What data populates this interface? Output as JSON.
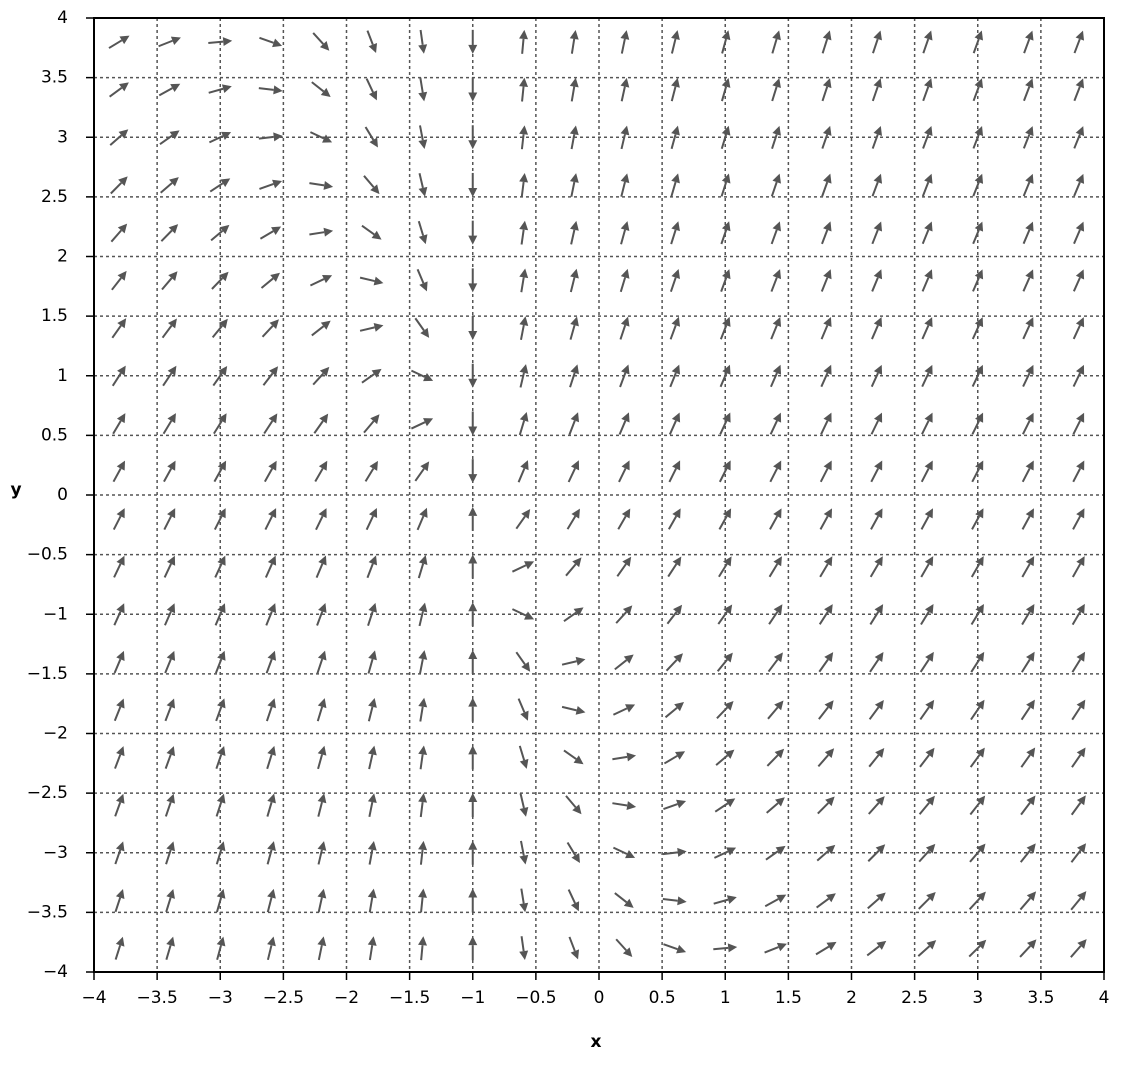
{
  "chart_data": {
    "type": "quiver",
    "xlabel": "x",
    "ylabel": "y",
    "xlim": [
      -4,
      4
    ],
    "ylim": [
      -4,
      4
    ],
    "xticks": [
      {
        "value": -4,
        "label": "−4"
      },
      {
        "value": -3.5,
        "label": "−3.5"
      },
      {
        "value": -3,
        "label": "−3"
      },
      {
        "value": -2.5,
        "label": "−2.5"
      },
      {
        "value": -2,
        "label": "−2"
      },
      {
        "value": -1.5,
        "label": "−1.5"
      },
      {
        "value": -1,
        "label": "−1"
      },
      {
        "value": -0.5,
        "label": "−0.5"
      },
      0,
      0.5,
      1,
      1.5,
      2,
      2.5,
      3,
      3.5,
      4
    ],
    "yticks": [
      {
        "value": -4,
        "label": "−4"
      },
      {
        "value": -3.5,
        "label": "−3.5"
      },
      {
        "value": -3,
        "label": "−3"
      },
      {
        "value": -2.5,
        "label": "−2.5"
      },
      {
        "value": -2,
        "label": "−2"
      },
      {
        "value": -1.5,
        "label": "−1.5"
      },
      {
        "value": -1,
        "label": "−1"
      },
      {
        "value": -0.5,
        "label": "−0.5"
      },
      0,
      0.5,
      1,
      1.5,
      2,
      2.5,
      3,
      3.5,
      4
    ],
    "grid": true,
    "color": "#555555",
    "x": [
      -3.8,
      -3.4,
      -3.0,
      -2.6,
      -2.2,
      -1.8,
      -1.4,
      -1.0,
      -0.6,
      -0.2,
      0.2,
      0.6,
      1.0,
      1.4,
      1.8,
      2.2,
      2.6,
      3.0,
      3.4,
      3.8
    ],
    "y": [
      3.8,
      3.4,
      3.0,
      2.6,
      2.2,
      1.8,
      1.4,
      1.0,
      0.6,
      0.2,
      -0.2,
      -0.6,
      -1.0,
      -1.4,
      -1.8,
      -2.2,
      -2.6,
      -3.0,
      -3.4,
      -3.8
    ],
    "u": [
      2.8,
      2.4,
      2.0,
      1.6,
      1.2,
      0.8,
      0.4,
      0,
      0.4,
      0.8,
      1.2,
      1.6,
      2.0,
      2.4,
      2.8,
      3.2,
      3.6,
      4.0,
      4.4,
      4.8
    ],
    "v": [
      [
        1.8,
        1.0,
        0.2,
        -0.6,
        -1.4,
        -2.2,
        -3.0,
        -3.8,
        4.6,
        5.4,
        6.2,
        7.0,
        7.8,
        8.6,
        9.4,
        10.2,
        11.0,
        11.8,
        12.6,
        13.4
      ],
      [
        2.2,
        1.4,
        0.6,
        -0.2,
        -1.0,
        -1.8,
        -2.6,
        -3.4,
        4.2,
        5.0,
        5.8,
        6.6,
        7.4,
        8.2,
        9.0,
        9.8,
        10.6,
        11.4,
        12.2,
        13.0
      ],
      [
        2.6,
        1.8,
        1.0,
        0.2,
        -0.6,
        -1.4,
        -2.2,
        -3.0,
        3.8,
        4.6,
        5.4,
        6.2,
        7.0,
        7.8,
        8.6,
        9.4,
        10.2,
        11.0,
        11.8,
        12.6
      ],
      [
        3.0,
        2.2,
        1.4,
        0.6,
        -0.2,
        -1.0,
        -1.8,
        -2.6,
        3.4,
        4.2,
        5.0,
        5.8,
        6.6,
        7.4,
        8.2,
        9.0,
        9.8,
        10.6,
        11.4,
        12.2
      ],
      [
        3.4,
        2.6,
        1.8,
        1.0,
        0.2,
        -0.6,
        -1.4,
        -2.2,
        3.0,
        3.8,
        4.6,
        5.4,
        6.2,
        7.0,
        7.8,
        8.6,
        9.4,
        10.2,
        11.0,
        11.8
      ],
      [
        3.8,
        3.0,
        2.2,
        1.4,
        0.6,
        -0.2,
        -1.0,
        -1.8,
        2.6,
        3.4,
        4.2,
        5.0,
        5.8,
        6.6,
        7.4,
        8.2,
        9.0,
        9.8,
        10.6,
        11.4
      ],
      [
        4.2,
        3.4,
        2.6,
        1.8,
        1.0,
        0.2,
        -0.6,
        -1.4,
        2.2,
        3.0,
        3.8,
        4.6,
        5.4,
        6.2,
        7.0,
        7.8,
        8.6,
        9.4,
        10.2,
        11.0
      ],
      [
        4.6,
        3.8,
        3.0,
        2.2,
        1.4,
        0.6,
        -0.2,
        -1.0,
        1.8,
        2.6,
        3.4,
        4.2,
        5.0,
        5.8,
        6.6,
        7.4,
        8.2,
        9.0,
        9.8,
        10.6
      ],
      [
        5.0,
        4.2,
        3.4,
        2.6,
        1.8,
        1.0,
        0.2,
        -0.6,
        1.4,
        2.2,
        3.0,
        3.8,
        4.6,
        5.4,
        6.2,
        7.0,
        7.8,
        8.6,
        9.4,
        10.2
      ],
      [
        5.4,
        4.6,
        3.8,
        3.0,
        2.2,
        1.4,
        0.6,
        -0.2,
        1.0,
        1.8,
        2.6,
        3.4,
        4.2,
        5.0,
        5.8,
        6.6,
        7.4,
        8.2,
        9.0,
        9.8
      ],
      [
        5.8,
        5.0,
        4.2,
        3.4,
        2.6,
        1.8,
        1.0,
        0.2,
        0.6,
        1.4,
        2.2,
        3.0,
        3.8,
        4.6,
        5.4,
        6.2,
        7.0,
        7.8,
        8.6,
        9.4
      ],
      [
        6.2,
        5.4,
        4.6,
        3.8,
        3.0,
        2.2,
        1.4,
        0.6,
        0.2,
        1.0,
        1.8,
        2.6,
        3.4,
        4.2,
        5.0,
        5.8,
        6.6,
        7.4,
        8.2,
        9.0
      ],
      [
        6.6,
        5.8,
        5.0,
        4.2,
        3.4,
        2.6,
        1.8,
        1.0,
        -0.2,
        0.6,
        1.4,
        2.2,
        3.0,
        3.8,
        4.6,
        5.4,
        6.2,
        7.0,
        7.8,
        8.6
      ],
      [
        7.0,
        6.2,
        5.4,
        4.6,
        3.8,
        3.0,
        2.2,
        1.4,
        -0.6,
        0.2,
        1.0,
        1.8,
        2.6,
        3.4,
        4.2,
        5.0,
        5.8,
        6.6,
        7.4,
        8.2
      ],
      [
        7.4,
        6.6,
        5.8,
        5.0,
        4.2,
        3.4,
        2.6,
        1.8,
        -1.0,
        -0.2,
        0.6,
        1.4,
        2.2,
        3.0,
        3.8,
        4.6,
        5.4,
        6.2,
        7.0,
        7.8
      ],
      [
        7.8,
        7.0,
        6.2,
        5.4,
        4.6,
        3.8,
        3.0,
        2.2,
        -1.4,
        -0.6,
        0.2,
        1.0,
        1.8,
        2.6,
        3.4,
        4.2,
        5.0,
        5.8,
        6.6,
        7.4
      ],
      [
        8.2,
        7.4,
        6.6,
        5.8,
        5.0,
        4.2,
        3.4,
        2.6,
        -1.8,
        -1.0,
        -0.2,
        0.6,
        1.4,
        2.2,
        3.0,
        3.8,
        4.6,
        5.4,
        6.2,
        7.0
      ],
      [
        8.6,
        7.8,
        7.0,
        6.2,
        5.4,
        4.6,
        3.8,
        3.0,
        -2.2,
        -1.4,
        -0.6,
        0.2,
        1.0,
        1.8,
        2.6,
        3.4,
        4.2,
        5.0,
        5.8,
        6.6
      ],
      [
        9.0,
        8.2,
        7.4,
        6.6,
        5.8,
        5.0,
        4.2,
        3.4,
        -2.6,
        -1.8,
        -1.0,
        -0.2,
        0.6,
        1.4,
        2.2,
        3.0,
        3.8,
        4.6,
        5.4,
        6.2
      ],
      [
        9.4,
        8.6,
        7.8,
        7.0,
        6.2,
        5.4,
        4.6,
        3.8,
        -3.0,
        -2.2,
        -1.4,
        -0.6,
        0.2,
        1.0,
        1.8,
        2.6,
        3.4,
        4.2,
        5.0,
        5.8
      ]
    ]
  }
}
